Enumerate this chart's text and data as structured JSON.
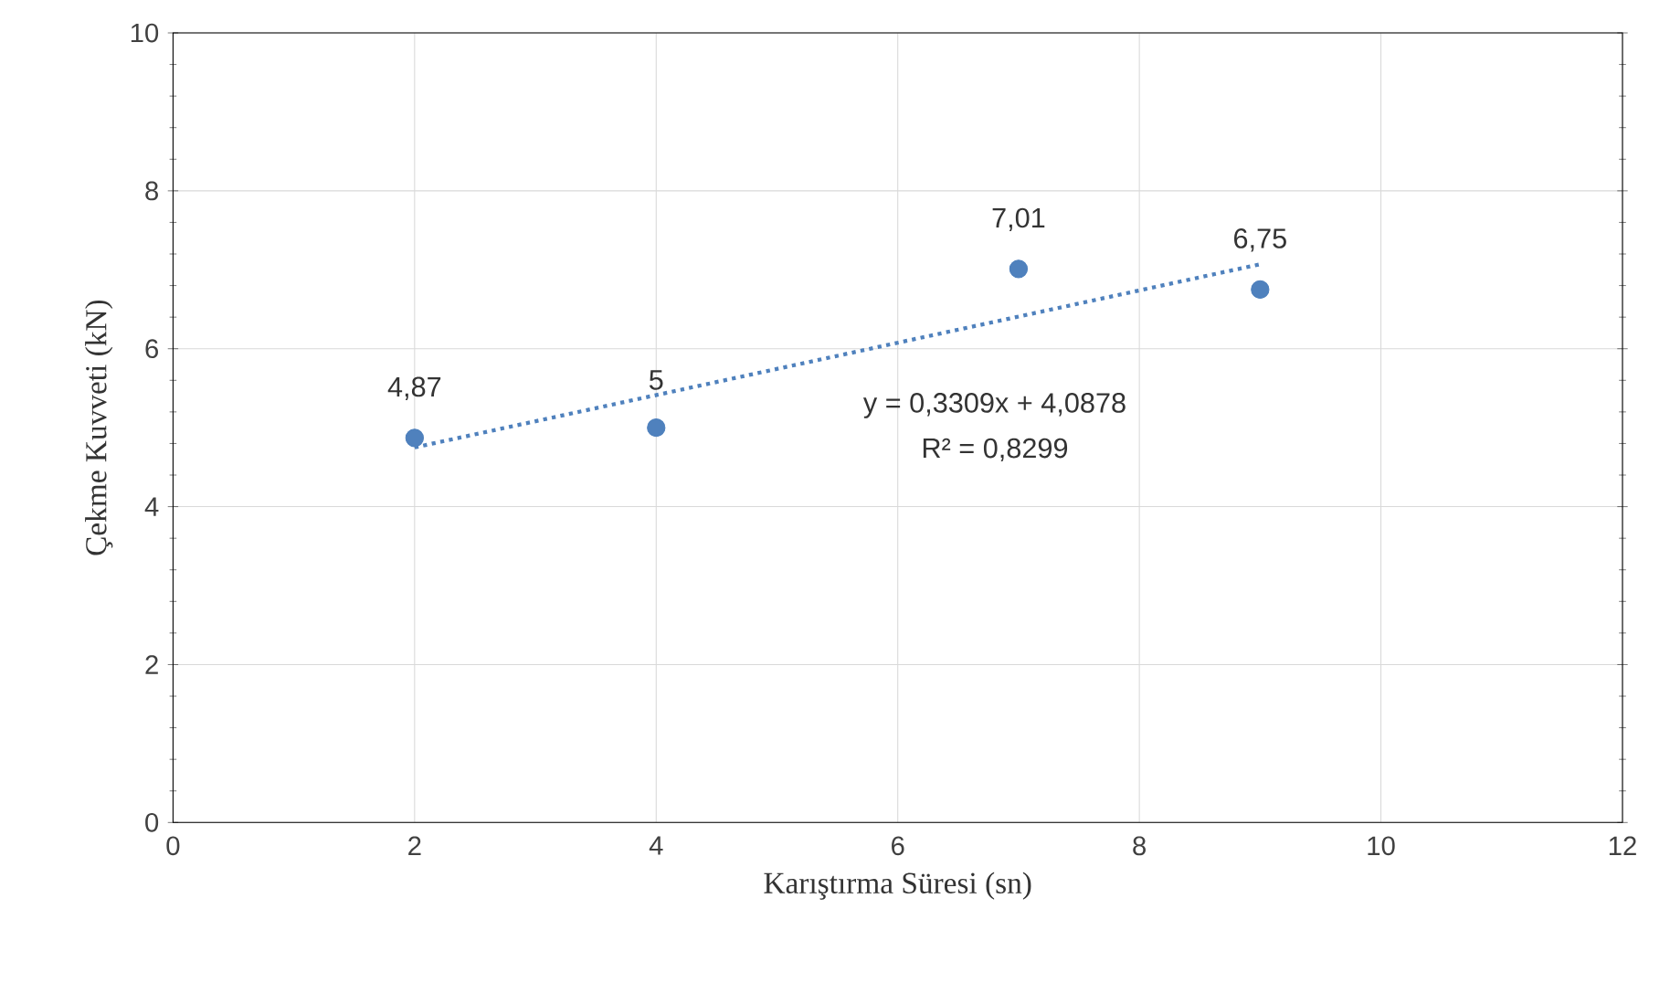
{
  "chart_data": {
    "type": "scatter",
    "xlabel": "Karıştırma Süresi (sn)",
    "ylabel": "Çekme Kuvveti (kN)",
    "series": [
      {
        "color": "#4f81bd",
        "x": [
          2,
          4,
          7,
          9
        ],
        "values": [
          4.87,
          5,
          7.01,
          6.75
        ],
        "value_labels": [
          "4,87",
          "5",
          "7,01",
          "6,75"
        ],
        "marker": "circle"
      },
      {
        "type": "line",
        "color": "#4f81bd",
        "x": [
          2,
          9
        ],
        "values": [
          4.75,
          7.07
        ],
        "line_style": "dotted",
        "marker": "none"
      }
    ],
    "annotations": [
      "y = 0,3309x + 4,0878",
      "R² = 0,8299"
    ],
    "xlim": [
      0,
      12
    ],
    "xticks": [
      0,
      2,
      4,
      6,
      8,
      10,
      12
    ],
    "ylim": [
      0,
      10
    ],
    "yticks": [
      0,
      2,
      4,
      6,
      8,
      10
    ],
    "grid": true
  }
}
